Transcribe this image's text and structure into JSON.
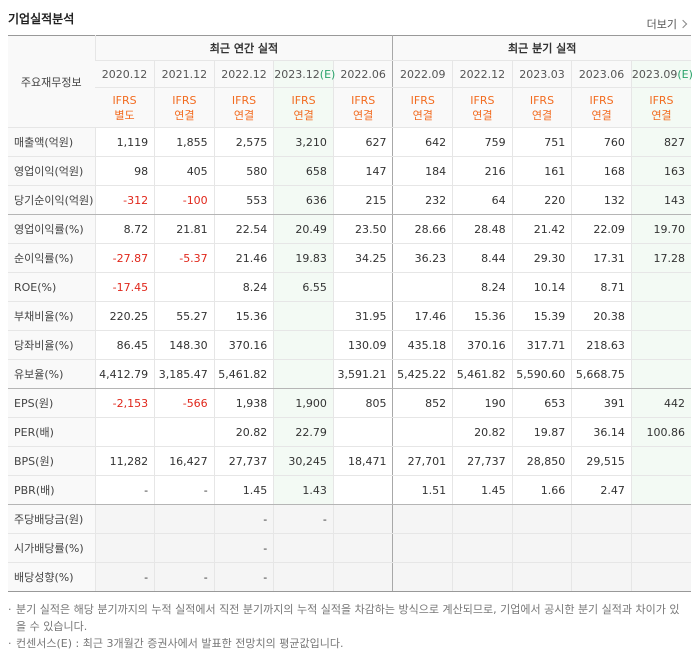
{
  "header": {
    "title": "기업실적분석",
    "more": "더보기"
  },
  "table": {
    "corner": "주요재무정보",
    "groups": [
      "최근 연간 실적",
      "최근 분기 실적"
    ],
    "periods": [
      {
        "date": "2020.12"
      },
      {
        "date": "2021.12"
      },
      {
        "date": "2022.12"
      },
      {
        "date": "2023.12",
        "estimate": "(E)"
      },
      {
        "date": "2022.06"
      },
      {
        "date": "2022.09"
      },
      {
        "date": "2022.12"
      },
      {
        "date": "2023.03"
      },
      {
        "date": "2023.06"
      },
      {
        "date": "2023.09",
        "estimate": "(E)"
      }
    ],
    "standards": [
      [
        "IFRS",
        "별도"
      ],
      [
        "IFRS",
        "연결"
      ],
      [
        "IFRS",
        "연결"
      ],
      [
        "IFRS",
        "연결"
      ],
      [
        "IFRS",
        "연결"
      ],
      [
        "IFRS",
        "연결"
      ],
      [
        "IFRS",
        "연결"
      ],
      [
        "IFRS",
        "연결"
      ],
      [
        "IFRS",
        "연결"
      ],
      [
        "IFRS",
        "연결"
      ]
    ],
    "rows": [
      {
        "label": "매출액(억원)",
        "values": [
          "1,119",
          "1,855",
          "2,575",
          "3,210",
          "627",
          "642",
          "759",
          "751",
          "760",
          "827"
        ]
      },
      {
        "label": "영업이익(억원)",
        "values": [
          "98",
          "405",
          "580",
          "658",
          "147",
          "184",
          "216",
          "161",
          "168",
          "163"
        ]
      },
      {
        "label": "당기순이익(억원)",
        "values": [
          "-312",
          "-100",
          "553",
          "636",
          "215",
          "232",
          "64",
          "220",
          "132",
          "143"
        ]
      },
      {
        "label": "영업이익률(%)",
        "values": [
          "8.72",
          "21.81",
          "22.54",
          "20.49",
          "23.50",
          "28.66",
          "28.48",
          "21.42",
          "22.09",
          "19.70"
        ]
      },
      {
        "label": "순이익률(%)",
        "values": [
          "-27.87",
          "-5.37",
          "21.46",
          "19.83",
          "34.25",
          "36.23",
          "8.44",
          "29.30",
          "17.31",
          "17.28"
        ]
      },
      {
        "label": "ROE(%)",
        "values": [
          "-17.45",
          null,
          "8.24",
          "6.55",
          null,
          null,
          "8.24",
          "10.14",
          "8.71",
          null
        ]
      },
      {
        "label": "부채비율(%)",
        "values": [
          "220.25",
          "55.27",
          "15.36",
          null,
          "31.95",
          "17.46",
          "15.36",
          "15.39",
          "20.38",
          null
        ]
      },
      {
        "label": "당좌비율(%)",
        "values": [
          "86.45",
          "148.30",
          "370.16",
          null,
          "130.09",
          "435.18",
          "370.16",
          "317.71",
          "218.63",
          null
        ]
      },
      {
        "label": "유보율(%)",
        "values": [
          "4,412.79",
          "3,185.47",
          "5,461.82",
          null,
          "3,591.21",
          "5,425.22",
          "5,461.82",
          "5,590.60",
          "5,668.75",
          null
        ]
      },
      {
        "label": "EPS(원)",
        "values": [
          "-2,153",
          "-566",
          "1,938",
          "1,900",
          "805",
          "852",
          "190",
          "653",
          "391",
          "442"
        ]
      },
      {
        "label": "PER(배)",
        "values": [
          null,
          null,
          "20.82",
          "22.79",
          null,
          null,
          "20.82",
          "19.87",
          "36.14",
          "100.86"
        ]
      },
      {
        "label": "BPS(원)",
        "values": [
          "11,282",
          "16,427",
          "27,737",
          "30,245",
          "18,471",
          "27,701",
          "27,737",
          "28,850",
          "29,515",
          null
        ]
      },
      {
        "label": "PBR(배)",
        "values": [
          "-",
          "-",
          "1.45",
          "1.43",
          null,
          "1.51",
          "1.45",
          "1.66",
          "2.47",
          null
        ]
      },
      {
        "label": "주당배당금(원)",
        "values": [
          null,
          null,
          "-",
          "-",
          null,
          null,
          null,
          null,
          null,
          null
        ]
      },
      {
        "label": "시가배당률(%)",
        "values": [
          null,
          null,
          "-",
          null,
          null,
          null,
          null,
          null,
          null,
          null
        ]
      },
      {
        "label": "배당성향(%)",
        "values": [
          "-",
          "-",
          "-",
          null,
          null,
          null,
          null,
          null,
          null,
          null
        ]
      }
    ]
  },
  "notes": [
    "분기 실적은 해당 분기까지의 누적 실적에서 직전 분기까지의 누적 실적을 차감하는 방식으로 계산되므로, 기업에서 공시한 분기 실적과 차이가 있을 수 있습니다.",
    "컨센서스(E) : 최근 3개월간 증권사에서 발표한 전망치의 평균값입니다."
  ]
}
